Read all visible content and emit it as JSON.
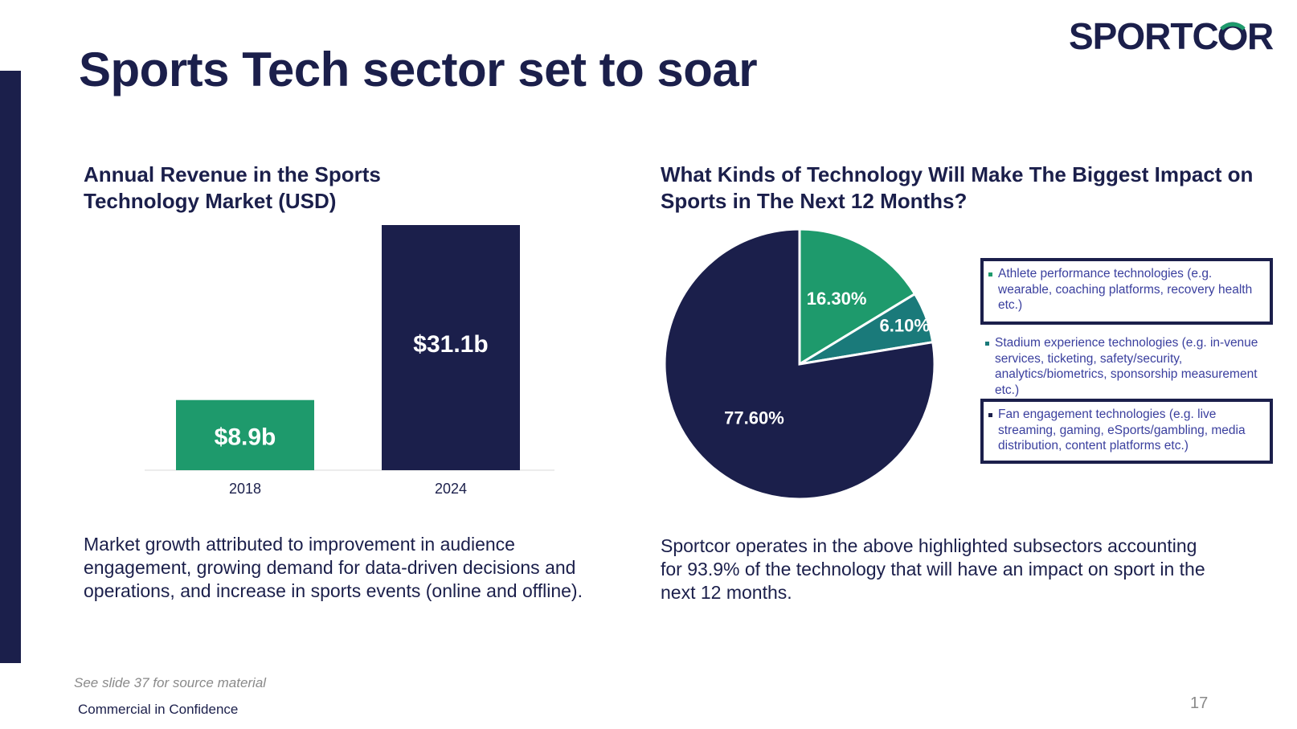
{
  "slide": {
    "title": "Sports Tech sector set to soar",
    "logo_text": "SPORTCOR",
    "source_note": "See slide 37 for source material",
    "confidentiality": "Commercial in Confidence",
    "page_number": "17"
  },
  "colors": {
    "navy": "#1b1f4b",
    "green": "#1e9a6c",
    "teal": "#1a7a7a",
    "legend_text": "#3a3f9e"
  },
  "left_panel": {
    "title": "Annual Revenue in the Sports Technology Market (USD)",
    "body": "Market growth attributed to improvement in audience engagement, growing demand for data-driven decisions and operations, and increase in sports events (online and offline)."
  },
  "right_panel": {
    "title": "What Kinds of Technology Will Make The Biggest Impact on Sports in The Next 12 Months?",
    "body": "Sportcor operates in the above highlighted subsectors accounting for 93.9% of the technology that will have an impact on sport in the next 12 months."
  },
  "chart_data": [
    {
      "type": "bar",
      "categories": [
        "2018",
        "2024"
      ],
      "values": [
        8.9,
        31.1
      ],
      "value_labels": [
        "$8.9b",
        "$31.1b"
      ],
      "bar_colors": [
        "#1e9a6c",
        "#1b1f4b"
      ],
      "title": "Annual Revenue in the Sports Technology Market (USD)",
      "ylim": [
        0,
        31.1
      ],
      "grid": false
    },
    {
      "type": "pie",
      "title": "What Kinds of Technology Will Make The Biggest Impact on Sports in The Next 12 Months?",
      "slices": [
        {
          "value": 16.3,
          "label": "16.30%",
          "color": "#1e9a6c",
          "legend": "Athlete performance technologies (e.g. wearable, coaching platforms, recovery health etc.)",
          "highlighted": true
        },
        {
          "value": 6.1,
          "label": "6.10%",
          "color": "#1a7a7a",
          "legend": "Stadium experience technologies (e.g. in-venue services, ticketing, safety/security, analytics/biometrics, sponsorship measurement etc.)",
          "highlighted": false
        },
        {
          "value": 77.6,
          "label": "77.60%",
          "color": "#1b1f4b",
          "legend": "Fan engagement technologies (e.g. live streaming, gaming, eSports/gambling, media distribution, content platforms etc.)",
          "highlighted": true
        }
      ],
      "legend_position": "right"
    }
  ]
}
